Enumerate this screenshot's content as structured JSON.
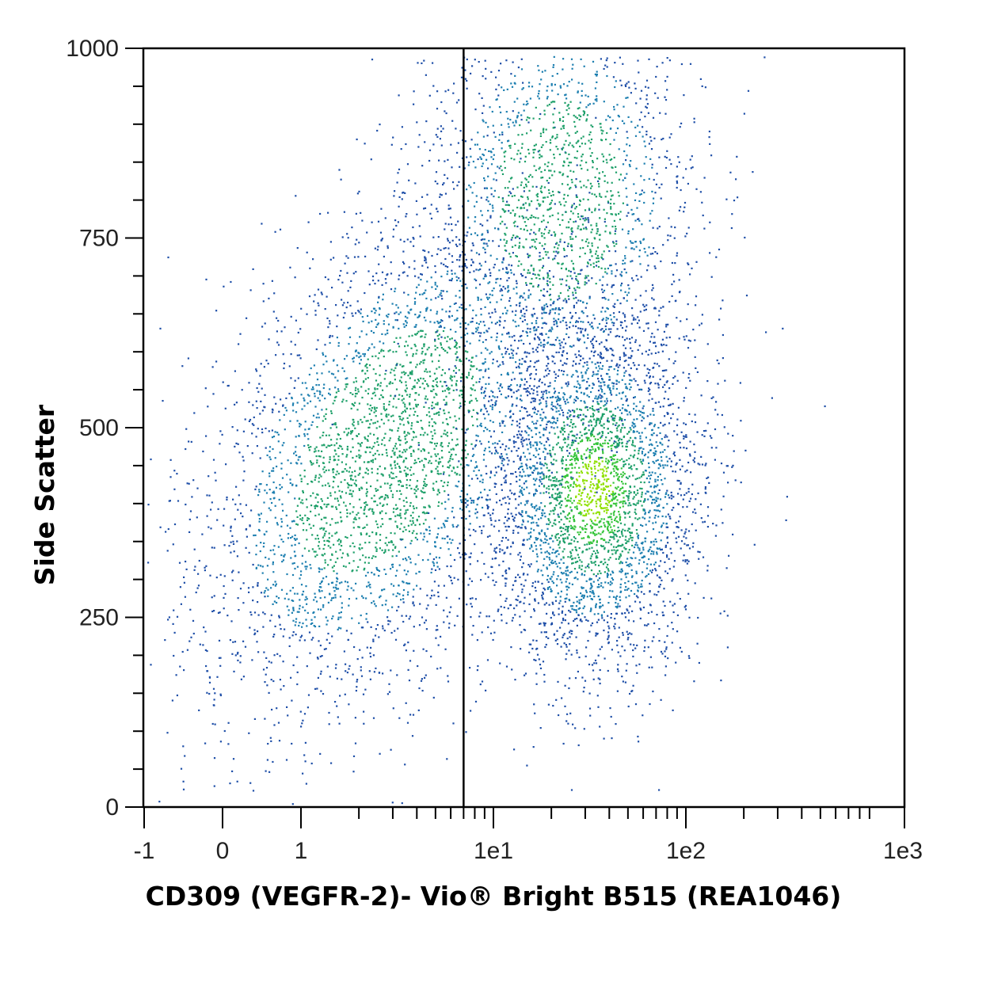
{
  "chart_data": {
    "type": "scatter",
    "title": "",
    "xlabel": "CD309 (VEGFR-2)- Vio® Bright B515 (REA1046)",
    "ylabel": "Side Scatter",
    "x_scale": "biexponential",
    "x_ticks": [
      {
        "value": -1,
        "label": "-1"
      },
      {
        "value": 0,
        "label": "0"
      },
      {
        "value": 1,
        "label": "1"
      },
      {
        "value": 10,
        "label": "1e1"
      },
      {
        "value": 100,
        "label": "1e2"
      },
      {
        "value": 1000,
        "label": "1e3"
      }
    ],
    "y_ticks": [
      {
        "value": 0,
        "label": "0"
      },
      {
        "value": 250,
        "label": "250"
      },
      {
        "value": 500,
        "label": "500"
      },
      {
        "value": 750,
        "label": "750"
      },
      {
        "value": 1000,
        "label": "1000"
      }
    ],
    "xlim": [
      -1,
      1000
    ],
    "ylim": [
      0,
      1000
    ],
    "grid": false,
    "gate_x": 7,
    "density_colors": [
      "#1f4fa8",
      "#1d7fb0",
      "#1fa06a",
      "#35c43a",
      "#8fe000"
    ],
    "populations": [
      {
        "x_center": 2.8,
        "y_center": 470,
        "x_spread_log": 0.45,
        "y_spread": 170,
        "relative_count": 0.42
      },
      {
        "x_center": 33,
        "y_center": 420,
        "x_spread_log": 0.28,
        "y_spread": 120,
        "relative_count": 0.38
      },
      {
        "x_center": 22,
        "y_center": 800,
        "x_spread_log": 0.35,
        "y_spread": 140,
        "relative_count": 0.2
      }
    ]
  }
}
